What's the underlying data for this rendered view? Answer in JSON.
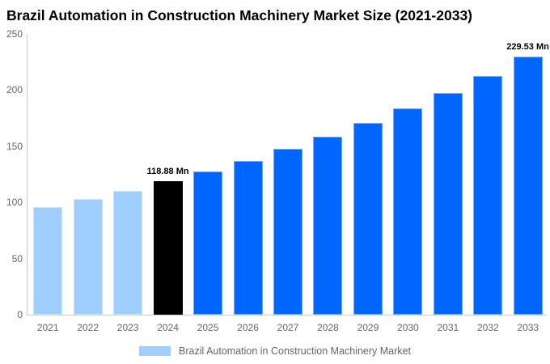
{
  "title": "Brazil Automation in Construction Machinery Market Size (2021-2033)",
  "legend": {
    "label": "Brazil Automation in Construction Machinery Market",
    "swatch_color": "#A0CFFF"
  },
  "colors": {
    "historical_bar": "#A0CFFF",
    "base_year_bar": "#000000",
    "forecast_bar": "#0066FF",
    "axis_line": "#cccccc",
    "tick_label": "#666666",
    "data_label": "#000000"
  },
  "chart_data": {
    "type": "bar",
    "title": "Brazil Automation in Construction Machinery Market Size (2021-2033)",
    "categories": [
      "2021",
      "2022",
      "2023",
      "2024",
      "2025",
      "2026",
      "2027",
      "2028",
      "2029",
      "2030",
      "2031",
      "2032",
      "2033"
    ],
    "values": [
      95.5,
      102.7,
      110.4,
      118.88,
      127.6,
      137.2,
      147.5,
      158.6,
      170.6,
      183.5,
      197.3,
      212.2,
      229.53
    ],
    "unit": "Mn",
    "xlabel": "",
    "ylabel": "",
    "ylim": [
      0,
      250
    ],
    "yticks": [
      0,
      50,
      100,
      150,
      200,
      250
    ],
    "grid": false,
    "legend_position": "bottom",
    "series_name": "Brazil Automation in Construction Machinery Market",
    "color_roles": [
      "historical",
      "historical",
      "historical",
      "base_year",
      "forecast",
      "forecast",
      "forecast",
      "forecast",
      "forecast",
      "forecast",
      "forecast",
      "forecast",
      "forecast"
    ],
    "data_labels": [
      {
        "index": 3,
        "text": "118.88 Mn"
      },
      {
        "index": 12,
        "text": "229.53 Mn"
      }
    ]
  }
}
